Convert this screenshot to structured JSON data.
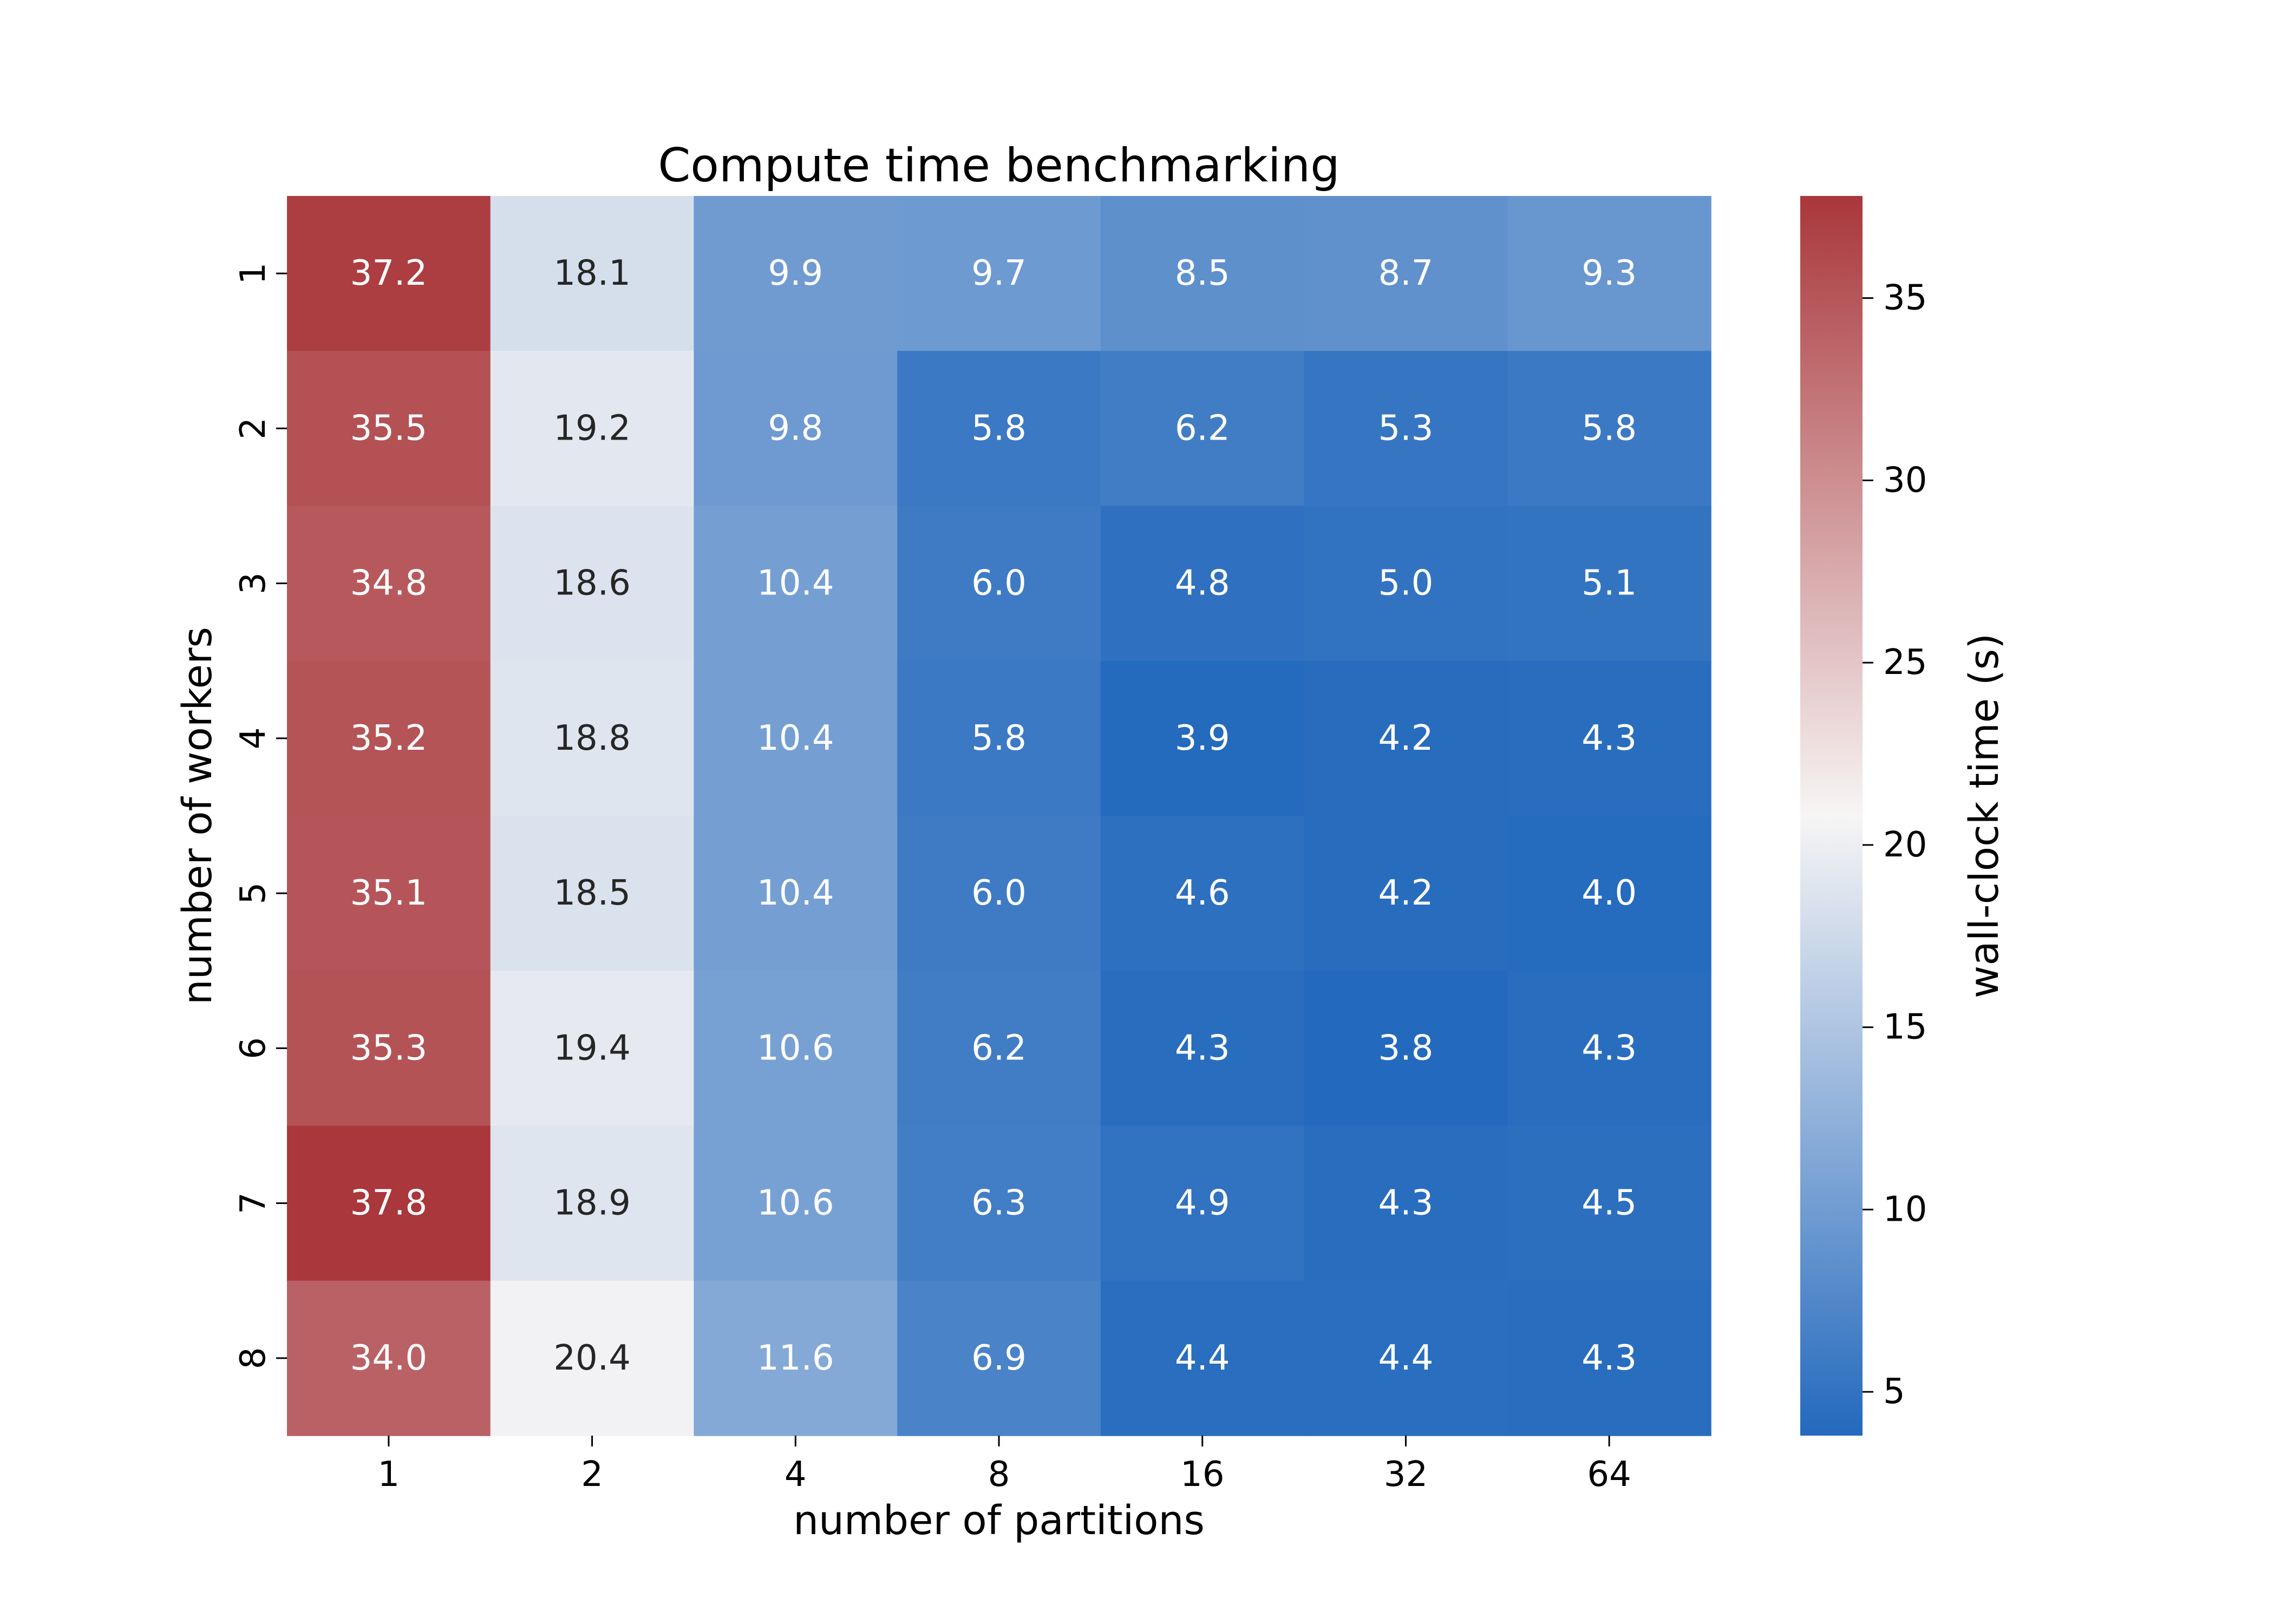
{
  "chart_data": {
    "type": "heatmap",
    "title": "Compute time benchmarking",
    "xlabel": "number of partitions",
    "ylabel": "number of workers",
    "x_categories": [
      "1",
      "2",
      "4",
      "8",
      "16",
      "32",
      "64"
    ],
    "y_categories": [
      "1",
      "2",
      "3",
      "4",
      "5",
      "6",
      "7",
      "8"
    ],
    "values": [
      [
        37.2,
        18.1,
        9.9,
        9.7,
        8.5,
        8.7,
        9.3
      ],
      [
        35.5,
        19.2,
        9.8,
        5.8,
        6.2,
        5.3,
        5.8
      ],
      [
        34.8,
        18.6,
        10.4,
        6.0,
        4.8,
        5.0,
        5.1
      ],
      [
        35.2,
        18.8,
        10.4,
        5.8,
        3.9,
        4.2,
        4.3
      ],
      [
        35.1,
        18.5,
        10.4,
        6.0,
        4.6,
        4.2,
        4.0
      ],
      [
        35.3,
        19.4,
        10.6,
        6.2,
        4.3,
        3.8,
        4.3
      ],
      [
        37.8,
        18.9,
        10.6,
        6.3,
        4.9,
        4.3,
        4.5
      ],
      [
        34.0,
        20.4,
        11.6,
        6.9,
        4.4,
        4.4,
        4.3
      ]
    ],
    "colorbar": {
      "label": "wall-clock time (s)",
      "range": [
        3.8,
        37.8
      ],
      "ticks": [
        5,
        10,
        15,
        20,
        25,
        30,
        35
      ],
      "colormap": "vlag",
      "low_color": "#2369bd",
      "mid_color": "#f7f5f5",
      "high_color": "#a9373b"
    },
    "annotations": "cell values printed in each cell"
  }
}
